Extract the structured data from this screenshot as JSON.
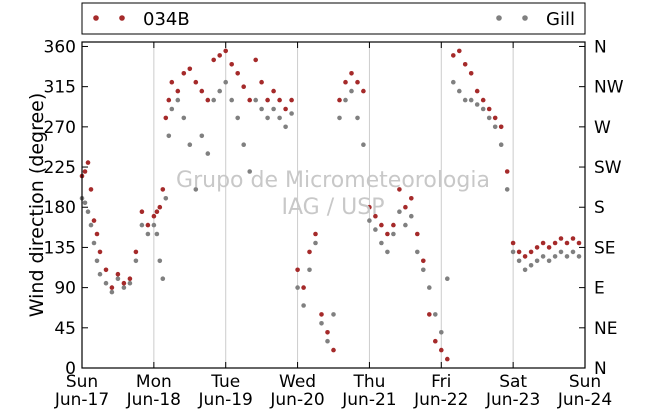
{
  "colors": {
    "series_034B": "#a52a2a",
    "series_Gill": "#808080",
    "grid": "#cccccc",
    "watermark": "#c8c8c8"
  },
  "watermark": {
    "line1": "Grupo de Micrometeorologia",
    "line2": "IAG / USP"
  },
  "chart_data": {
    "type": "scatter",
    "title": "",
    "xlabel": "",
    "ylabel": "Wind direction (degree)",
    "ylim": [
      0,
      365
    ],
    "yticks": [
      0,
      45,
      90,
      135,
      180,
      225,
      270,
      315,
      360
    ],
    "right_ticks": [
      {
        "value": 0,
        "label": "N"
      },
      {
        "value": 45,
        "label": "NE"
      },
      {
        "value": 90,
        "label": "E"
      },
      {
        "value": 135,
        "label": "SE"
      },
      {
        "value": 180,
        "label": "S"
      },
      {
        "value": 225,
        "label": "SW"
      },
      {
        "value": 270,
        "label": "W"
      },
      {
        "value": 315,
        "label": "NW"
      },
      {
        "value": 360,
        "label": "N"
      }
    ],
    "xlim": [
      "2012-06-17",
      "2012-06-24"
    ],
    "xticks": [
      {
        "date": "2012-06-17",
        "day": "Sun",
        "date_label": "Jun-17"
      },
      {
        "date": "2012-06-18",
        "day": "Mon",
        "date_label": "Jun-18"
      },
      {
        "date": "2012-06-19",
        "day": "Tue",
        "date_label": "Jun-19"
      },
      {
        "date": "2012-06-20",
        "day": "Wed",
        "date_label": "Jun-20"
      },
      {
        "date": "2012-06-21",
        "day": "Thu",
        "date_label": "Jun-21"
      },
      {
        "date": "2012-06-22",
        "day": "Fri",
        "date_label": "Jun-22"
      },
      {
        "date": "2012-06-23",
        "day": "Sat",
        "date_label": "Jun-23"
      },
      {
        "date": "2012-06-24",
        "day": "Sun",
        "date_label": "Jun-24"
      }
    ],
    "grid": "vertical",
    "legend": {
      "placement": "top",
      "entries": [
        "034B",
        "Gill"
      ]
    },
    "series": [
      {
        "name": "034B",
        "color": "#a52a2a",
        "points": [
          [
            "2012-06-17 00:00",
            215
          ],
          [
            "2012-06-17 01:00",
            220
          ],
          [
            "2012-06-17 02:00",
            230
          ],
          [
            "2012-06-17 03:00",
            200
          ],
          [
            "2012-06-17 04:00",
            165
          ],
          [
            "2012-06-17 05:00",
            150
          ],
          [
            "2012-06-17 06:00",
            130
          ],
          [
            "2012-06-17 08:00",
            110
          ],
          [
            "2012-06-17 10:00",
            90
          ],
          [
            "2012-06-17 12:00",
            105
          ],
          [
            "2012-06-17 14:00",
            95
          ],
          [
            "2012-06-17 16:00",
            100
          ],
          [
            "2012-06-17 18:00",
            130
          ],
          [
            "2012-06-17 20:00",
            175
          ],
          [
            "2012-06-17 22:00",
            160
          ],
          [
            "2012-06-18 00:00",
            170
          ],
          [
            "2012-06-18 01:00",
            175
          ],
          [
            "2012-06-18 02:00",
            180
          ],
          [
            "2012-06-18 03:00",
            200
          ],
          [
            "2012-06-18 04:00",
            280
          ],
          [
            "2012-06-18 05:00",
            300
          ],
          [
            "2012-06-18 06:00",
            320
          ],
          [
            "2012-06-18 08:00",
            310
          ],
          [
            "2012-06-18 10:00",
            330
          ],
          [
            "2012-06-18 12:00",
            335
          ],
          [
            "2012-06-18 14:00",
            320
          ],
          [
            "2012-06-18 16:00",
            310
          ],
          [
            "2012-06-18 18:00",
            300
          ],
          [
            "2012-06-18 20:00",
            345
          ],
          [
            "2012-06-18 22:00",
            350
          ],
          [
            "2012-06-19 00:00",
            355
          ],
          [
            "2012-06-19 02:00",
            340
          ],
          [
            "2012-06-19 04:00",
            330
          ],
          [
            "2012-06-19 06:00",
            315
          ],
          [
            "2012-06-19 08:00",
            300
          ],
          [
            "2012-06-19 10:00",
            345
          ],
          [
            "2012-06-19 12:00",
            320
          ],
          [
            "2012-06-19 14:00",
            300
          ],
          [
            "2012-06-19 16:00",
            310
          ],
          [
            "2012-06-19 18:00",
            300
          ],
          [
            "2012-06-19 20:00",
            290
          ],
          [
            "2012-06-19 22:00",
            300
          ],
          [
            "2012-06-20 00:00",
            110
          ],
          [
            "2012-06-20 02:00",
            90
          ],
          [
            "2012-06-20 04:00",
            130
          ],
          [
            "2012-06-20 06:00",
            150
          ],
          [
            "2012-06-20 08:00",
            60
          ],
          [
            "2012-06-20 10:00",
            40
          ],
          [
            "2012-06-20 12:00",
            20
          ],
          [
            "2012-06-20 14:00",
            300
          ],
          [
            "2012-06-20 16:00",
            320
          ],
          [
            "2012-06-20 18:00",
            330
          ],
          [
            "2012-06-20 20:00",
            320
          ],
          [
            "2012-06-20 22:00",
            310
          ],
          [
            "2012-06-21 00:00",
            180
          ],
          [
            "2012-06-21 02:00",
            170
          ],
          [
            "2012-06-21 04:00",
            160
          ],
          [
            "2012-06-21 06:00",
            150
          ],
          [
            "2012-06-21 08:00",
            160
          ],
          [
            "2012-06-21 10:00",
            200
          ],
          [
            "2012-06-21 12:00",
            180
          ],
          [
            "2012-06-21 14:00",
            190
          ],
          [
            "2012-06-21 16:00",
            150
          ],
          [
            "2012-06-21 18:00",
            120
          ],
          [
            "2012-06-21 20:00",
            60
          ],
          [
            "2012-06-21 22:00",
            30
          ],
          [
            "2012-06-22 00:00",
            20
          ],
          [
            "2012-06-22 02:00",
            10
          ],
          [
            "2012-06-22 04:00",
            350
          ],
          [
            "2012-06-22 06:00",
            355
          ],
          [
            "2012-06-22 08:00",
            340
          ],
          [
            "2012-06-22 10:00",
            330
          ],
          [
            "2012-06-22 12:00",
            310
          ],
          [
            "2012-06-22 14:00",
            300
          ],
          [
            "2012-06-22 16:00",
            290
          ],
          [
            "2012-06-22 18:00",
            280
          ],
          [
            "2012-06-22 20:00",
            270
          ],
          [
            "2012-06-22 22:00",
            220
          ],
          [
            "2012-06-23 00:00",
            140
          ],
          [
            "2012-06-23 02:00",
            130
          ],
          [
            "2012-06-23 04:00",
            125
          ],
          [
            "2012-06-23 06:00",
            130
          ],
          [
            "2012-06-23 08:00",
            135
          ],
          [
            "2012-06-23 10:00",
            140
          ],
          [
            "2012-06-23 12:00",
            135
          ],
          [
            "2012-06-23 14:00",
            140
          ],
          [
            "2012-06-23 16:00",
            145
          ],
          [
            "2012-06-23 18:00",
            140
          ],
          [
            "2012-06-23 20:00",
            145
          ],
          [
            "2012-06-23 22:00",
            140
          ]
        ]
      },
      {
        "name": "Gill",
        "color": "#808080",
        "points": [
          [
            "2012-06-17 00:00",
            190
          ],
          [
            "2012-06-17 01:00",
            185
          ],
          [
            "2012-06-17 02:00",
            175
          ],
          [
            "2012-06-17 03:00",
            160
          ],
          [
            "2012-06-17 04:00",
            140
          ],
          [
            "2012-06-17 05:00",
            120
          ],
          [
            "2012-06-17 06:00",
            105
          ],
          [
            "2012-06-17 08:00",
            95
          ],
          [
            "2012-06-17 10:00",
            85
          ],
          [
            "2012-06-17 12:00",
            100
          ],
          [
            "2012-06-17 14:00",
            90
          ],
          [
            "2012-06-17 16:00",
            95
          ],
          [
            "2012-06-17 18:00",
            120
          ],
          [
            "2012-06-17 20:00",
            160
          ],
          [
            "2012-06-17 22:00",
            150
          ],
          [
            "2012-06-18 00:00",
            160
          ],
          [
            "2012-06-18 01:00",
            150
          ],
          [
            "2012-06-18 02:00",
            120
          ],
          [
            "2012-06-18 03:00",
            100
          ],
          [
            "2012-06-18 04:00",
            190
          ],
          [
            "2012-06-18 05:00",
            260
          ],
          [
            "2012-06-18 06:00",
            290
          ],
          [
            "2012-06-18 08:00",
            300
          ],
          [
            "2012-06-18 10:00",
            280
          ],
          [
            "2012-06-18 12:00",
            250
          ],
          [
            "2012-06-18 14:00",
            200
          ],
          [
            "2012-06-18 16:00",
            260
          ],
          [
            "2012-06-18 18:00",
            240
          ],
          [
            "2012-06-18 20:00",
            300
          ],
          [
            "2012-06-18 22:00",
            310
          ],
          [
            "2012-06-19 00:00",
            320
          ],
          [
            "2012-06-19 02:00",
            300
          ],
          [
            "2012-06-19 04:00",
            280
          ],
          [
            "2012-06-19 06:00",
            250
          ],
          [
            "2012-06-19 08:00",
            220
          ],
          [
            "2012-06-19 10:00",
            300
          ],
          [
            "2012-06-19 12:00",
            290
          ],
          [
            "2012-06-19 14:00",
            280
          ],
          [
            "2012-06-19 16:00",
            290
          ],
          [
            "2012-06-19 18:00",
            280
          ],
          [
            "2012-06-19 20:00",
            270
          ],
          [
            "2012-06-19 22:00",
            285
          ],
          [
            "2012-06-20 00:00",
            90
          ],
          [
            "2012-06-20 02:00",
            70
          ],
          [
            "2012-06-20 04:00",
            110
          ],
          [
            "2012-06-20 06:00",
            140
          ],
          [
            "2012-06-20 08:00",
            50
          ],
          [
            "2012-06-20 10:00",
            30
          ],
          [
            "2012-06-20 12:00",
            60
          ],
          [
            "2012-06-20 14:00",
            280
          ],
          [
            "2012-06-20 16:00",
            300
          ],
          [
            "2012-06-20 18:00",
            310
          ],
          [
            "2012-06-20 20:00",
            280
          ],
          [
            "2012-06-20 22:00",
            250
          ],
          [
            "2012-06-21 00:00",
            165
          ],
          [
            "2012-06-21 02:00",
            155
          ],
          [
            "2012-06-21 04:00",
            140
          ],
          [
            "2012-06-21 06:00",
            130
          ],
          [
            "2012-06-21 08:00",
            150
          ],
          [
            "2012-06-21 10:00",
            175
          ],
          [
            "2012-06-21 12:00",
            160
          ],
          [
            "2012-06-21 14:00",
            170
          ],
          [
            "2012-06-21 16:00",
            130
          ],
          [
            "2012-06-21 18:00",
            110
          ],
          [
            "2012-06-21 20:00",
            90
          ],
          [
            "2012-06-21 22:00",
            60
          ],
          [
            "2012-06-22 00:00",
            40
          ],
          [
            "2012-06-22 02:00",
            100
          ],
          [
            "2012-06-22 04:00",
            320
          ],
          [
            "2012-06-22 06:00",
            310
          ],
          [
            "2012-06-22 08:00",
            300
          ],
          [
            "2012-06-22 10:00",
            300
          ],
          [
            "2012-06-22 12:00",
            295
          ],
          [
            "2012-06-22 14:00",
            290
          ],
          [
            "2012-06-22 16:00",
            280
          ],
          [
            "2012-06-22 18:00",
            270
          ],
          [
            "2012-06-22 20:00",
            250
          ],
          [
            "2012-06-22 22:00",
            200
          ],
          [
            "2012-06-23 00:00",
            130
          ],
          [
            "2012-06-23 02:00",
            120
          ],
          [
            "2012-06-23 04:00",
            110
          ],
          [
            "2012-06-23 06:00",
            115
          ],
          [
            "2012-06-23 08:00",
            120
          ],
          [
            "2012-06-23 10:00",
            125
          ],
          [
            "2012-06-23 12:00",
            120
          ],
          [
            "2012-06-23 14:00",
            125
          ],
          [
            "2012-06-23 16:00",
            130
          ],
          [
            "2012-06-23 18:00",
            125
          ],
          [
            "2012-06-23 20:00",
            130
          ],
          [
            "2012-06-23 22:00",
            125
          ]
        ]
      }
    ]
  }
}
